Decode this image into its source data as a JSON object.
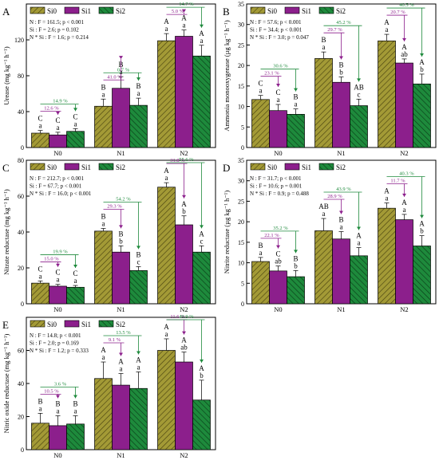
{
  "colors": {
    "Si0": "#a39a36",
    "Si1": "#8c1f8c",
    "Si2": "#1e8a3c"
  },
  "chart_data": [
    {
      "type": "bar",
      "panel_letter": "A",
      "categories": [
        "N0",
        "N1",
        "N2"
      ],
      "ylabel": "Urease (mg kg⁻¹ h⁻¹)",
      "ylim": [
        0,
        160
      ],
      "yticks": [
        0,
        40,
        80,
        120
      ],
      "legend": [
        "Si0",
        "Si1",
        "Si2"
      ],
      "stats": [
        "N : F = 161.5; p < 0.001",
        "Si : F = 2.6; p = 0.102",
        "N * Si : F = 1.6; p = 0.214"
      ],
      "series": [
        {
          "name": "Si0",
          "values": [
            16,
            46,
            119
          ],
          "errors": [
            3,
            8,
            8
          ]
        },
        {
          "name": "Si1",
          "values": [
            14,
            66,
            124
          ],
          "errors": [
            3,
            13,
            7
          ]
        },
        {
          "name": "Si2",
          "values": [
            18,
            47,
            102
          ],
          "errors": [
            3,
            8,
            12
          ]
        }
      ],
      "letters_upper": [
        [
          "C",
          "C",
          "C"
        ],
        [
          "B",
          "B",
          "B"
        ],
        [
          "A",
          "A",
          "A"
        ]
      ],
      "letters_lower": [
        [
          "a",
          "a",
          "a"
        ],
        [
          "a",
          "a",
          "a"
        ],
        [
          "a",
          "a",
          "a"
        ]
      ],
      "pct_si1": [
        "12.6 %",
        "41.0 %",
        "5.0 %"
      ],
      "pct_si2": [
        "14.9 %",
        "0.7 %",
        "14.7 %"
      ]
    },
    {
      "type": "bar",
      "panel_letter": "B",
      "categories": [
        "N0",
        "N1",
        "N2"
      ],
      "ylabel": "Ammonia monooxygenase (µg kg⁻¹ h⁻¹)",
      "ylim": [
        0,
        35
      ],
      "yticks": [
        0,
        5,
        10,
        15,
        20,
        25,
        30,
        35
      ],
      "legend": [
        "Si0",
        "Si1",
        "Si2"
      ],
      "stats": [
        "N : F = 57.6; p < 0.001",
        "Si : F = 34.4; p < 0.001",
        "N * Si : F = 3.0; p = 0.047"
      ],
      "series": [
        {
          "name": "Si0",
          "values": [
            11.7,
            21.7,
            26.0
          ],
          "errors": [
            1.0,
            1.6,
            1.6
          ]
        },
        {
          "name": "Si1",
          "values": [
            9.0,
            15.9,
            20.6
          ],
          "errors": [
            1.5,
            1.3,
            1.0
          ]
        },
        {
          "name": "Si2",
          "values": [
            8.1,
            10.2,
            15.5
          ],
          "errors": [
            1.3,
            1.6,
            2.4
          ]
        }
      ],
      "letters_upper": [
        [
          "C",
          "C",
          "B"
        ],
        [
          "B",
          "B",
          "AB"
        ],
        [
          "A",
          "A",
          "A"
        ]
      ],
      "letters_lower": [
        [
          "a",
          "a",
          "a"
        ],
        [
          "a",
          "b",
          "c"
        ],
        [
          "a",
          "ab",
          "b"
        ]
      ],
      "pct_si1": [
        "23.1 %",
        "29.7 %",
        "20.7 %"
      ],
      "pct_si2": [
        "30.6 %",
        "45.2 %",
        "40.5 %"
      ]
    },
    {
      "type": "bar",
      "panel_letter": "C",
      "categories": [
        "N0",
        "N1",
        "N2"
      ],
      "ylabel": "Nitrate reductase (mg kg⁻¹ h⁻¹)",
      "ylim": [
        0,
        80
      ],
      "yticks": [
        0,
        20,
        40,
        60,
        80
      ],
      "legend": [
        "Si0",
        "Si1",
        "Si2"
      ],
      "stats": [
        "N : F = 212.7; p < 0.001",
        "Si : F = 67.7; p < 0.001",
        "N * Si : F = 16.0; p < 0.001"
      ],
      "series": [
        {
          "name": "Si0",
          "values": [
            11.5,
            40.5,
            65.0
          ],
          "errors": [
            1.2,
            1.5,
            2.5
          ]
        },
        {
          "name": "Si1",
          "values": [
            9.8,
            28.8,
            44.0
          ],
          "errors": [
            1.0,
            3.5,
            5.0
          ]
        },
        {
          "name": "Si2",
          "values": [
            9.2,
            18.5,
            28.8
          ],
          "errors": [
            1.0,
            2.2,
            3.5
          ]
        }
      ],
      "letters_upper": [
        [
          "C",
          "C",
          "C"
        ],
        [
          "B",
          "B",
          "B"
        ],
        [
          "A",
          "A",
          "A"
        ]
      ],
      "letters_lower": [
        [
          "a",
          "a",
          "a"
        ],
        [
          "a",
          "b",
          "c"
        ],
        [
          "a",
          "b",
          "c"
        ]
      ],
      "pct_si1": [
        "15.0 %",
        "29.3 %",
        "31.8 %"
      ],
      "pct_si2": [
        "19.9 %",
        "54.2 %",
        "55.6 %"
      ]
    },
    {
      "type": "bar",
      "panel_letter": "D",
      "categories": [
        "N0",
        "N1",
        "N2"
      ],
      "ylabel": "Nitrite reductase (µg kg⁻¹ h⁻¹)",
      "ylim": [
        0,
        35
      ],
      "yticks": [
        0,
        5,
        10,
        15,
        20,
        25,
        30,
        35
      ],
      "legend": [
        "Si0",
        "Si1",
        "Si2"
      ],
      "stats": [
        "N : F = 31.7; p < 0.001",
        "Si : F = 10.6; p = 0.001",
        "N * Si : F = 0.9; p = 0.488"
      ],
      "series": [
        {
          "name": "Si0",
          "values": [
            10.3,
            17.8,
            23.3
          ],
          "errors": [
            1.0,
            3.0,
            1.3
          ]
        },
        {
          "name": "Si1",
          "values": [
            8.0,
            15.8,
            20.5
          ],
          "errors": [
            1.2,
            1.8,
            1.3
          ]
        },
        {
          "name": "Si2",
          "values": [
            6.6,
            11.7,
            14.1
          ],
          "errors": [
            1.5,
            2.0,
            2.5
          ]
        }
      ],
      "letters_upper": [
        [
          "B",
          "C",
          "B"
        ],
        [
          "AB",
          "B",
          "A"
        ],
        [
          "A",
          "A",
          "A"
        ]
      ],
      "letters_lower": [
        [
          "a",
          "ab",
          "b"
        ],
        [
          "a",
          "a",
          "a"
        ],
        [
          "a",
          "a",
          "b"
        ]
      ],
      "pct_si1": [
        "22.1 %",
        "28.9 %",
        "11.7 %"
      ],
      "pct_si2": [
        "35.2 %",
        "43.9 %",
        "40.3 %"
      ]
    },
    {
      "type": "bar",
      "panel_letter": "E",
      "categories": [
        "N0",
        "N1",
        "N2"
      ],
      "ylabel": "Nitric oxide reductase (mg kg⁻¹ h⁻¹)",
      "ylim": [
        0,
        80
      ],
      "yticks": [
        0,
        20,
        40,
        60
      ],
      "legend": [
        "Si0",
        "Si1",
        "Si2"
      ],
      "stats": [
        "N : F = 14.8; p < 0.001",
        "Si : F = 2.0; p = 0.169",
        "N * Si : F = 1.2; p = 0.333"
      ],
      "series": [
        {
          "name": "Si0",
          "values": [
            16,
            43,
            60
          ],
          "errors": [
            6,
            10,
            7
          ]
        },
        {
          "name": "Si1",
          "values": [
            14.5,
            39,
            53
          ],
          "errors": [
            6,
            7,
            6
          ]
        },
        {
          "name": "Si2",
          "values": [
            15.5,
            37,
            30
          ],
          "errors": [
            5,
            10,
            12
          ]
        }
      ],
      "letters_upper": [
        [
          "B",
          "B",
          "B"
        ],
        [
          "A",
          "A",
          "A"
        ],
        [
          "A",
          "A",
          "A"
        ]
      ],
      "letters_lower": [
        [
          "a",
          "a",
          "a"
        ],
        [
          "a",
          "a",
          "a"
        ],
        [
          "a",
          "ab",
          "b"
        ]
      ],
      "pct_si1": [
        "10.5 %",
        "9.1 %",
        "11.6 %"
      ],
      "pct_si2": [
        "3.6 %",
        "13.5 %",
        "49.9 %"
      ]
    }
  ]
}
